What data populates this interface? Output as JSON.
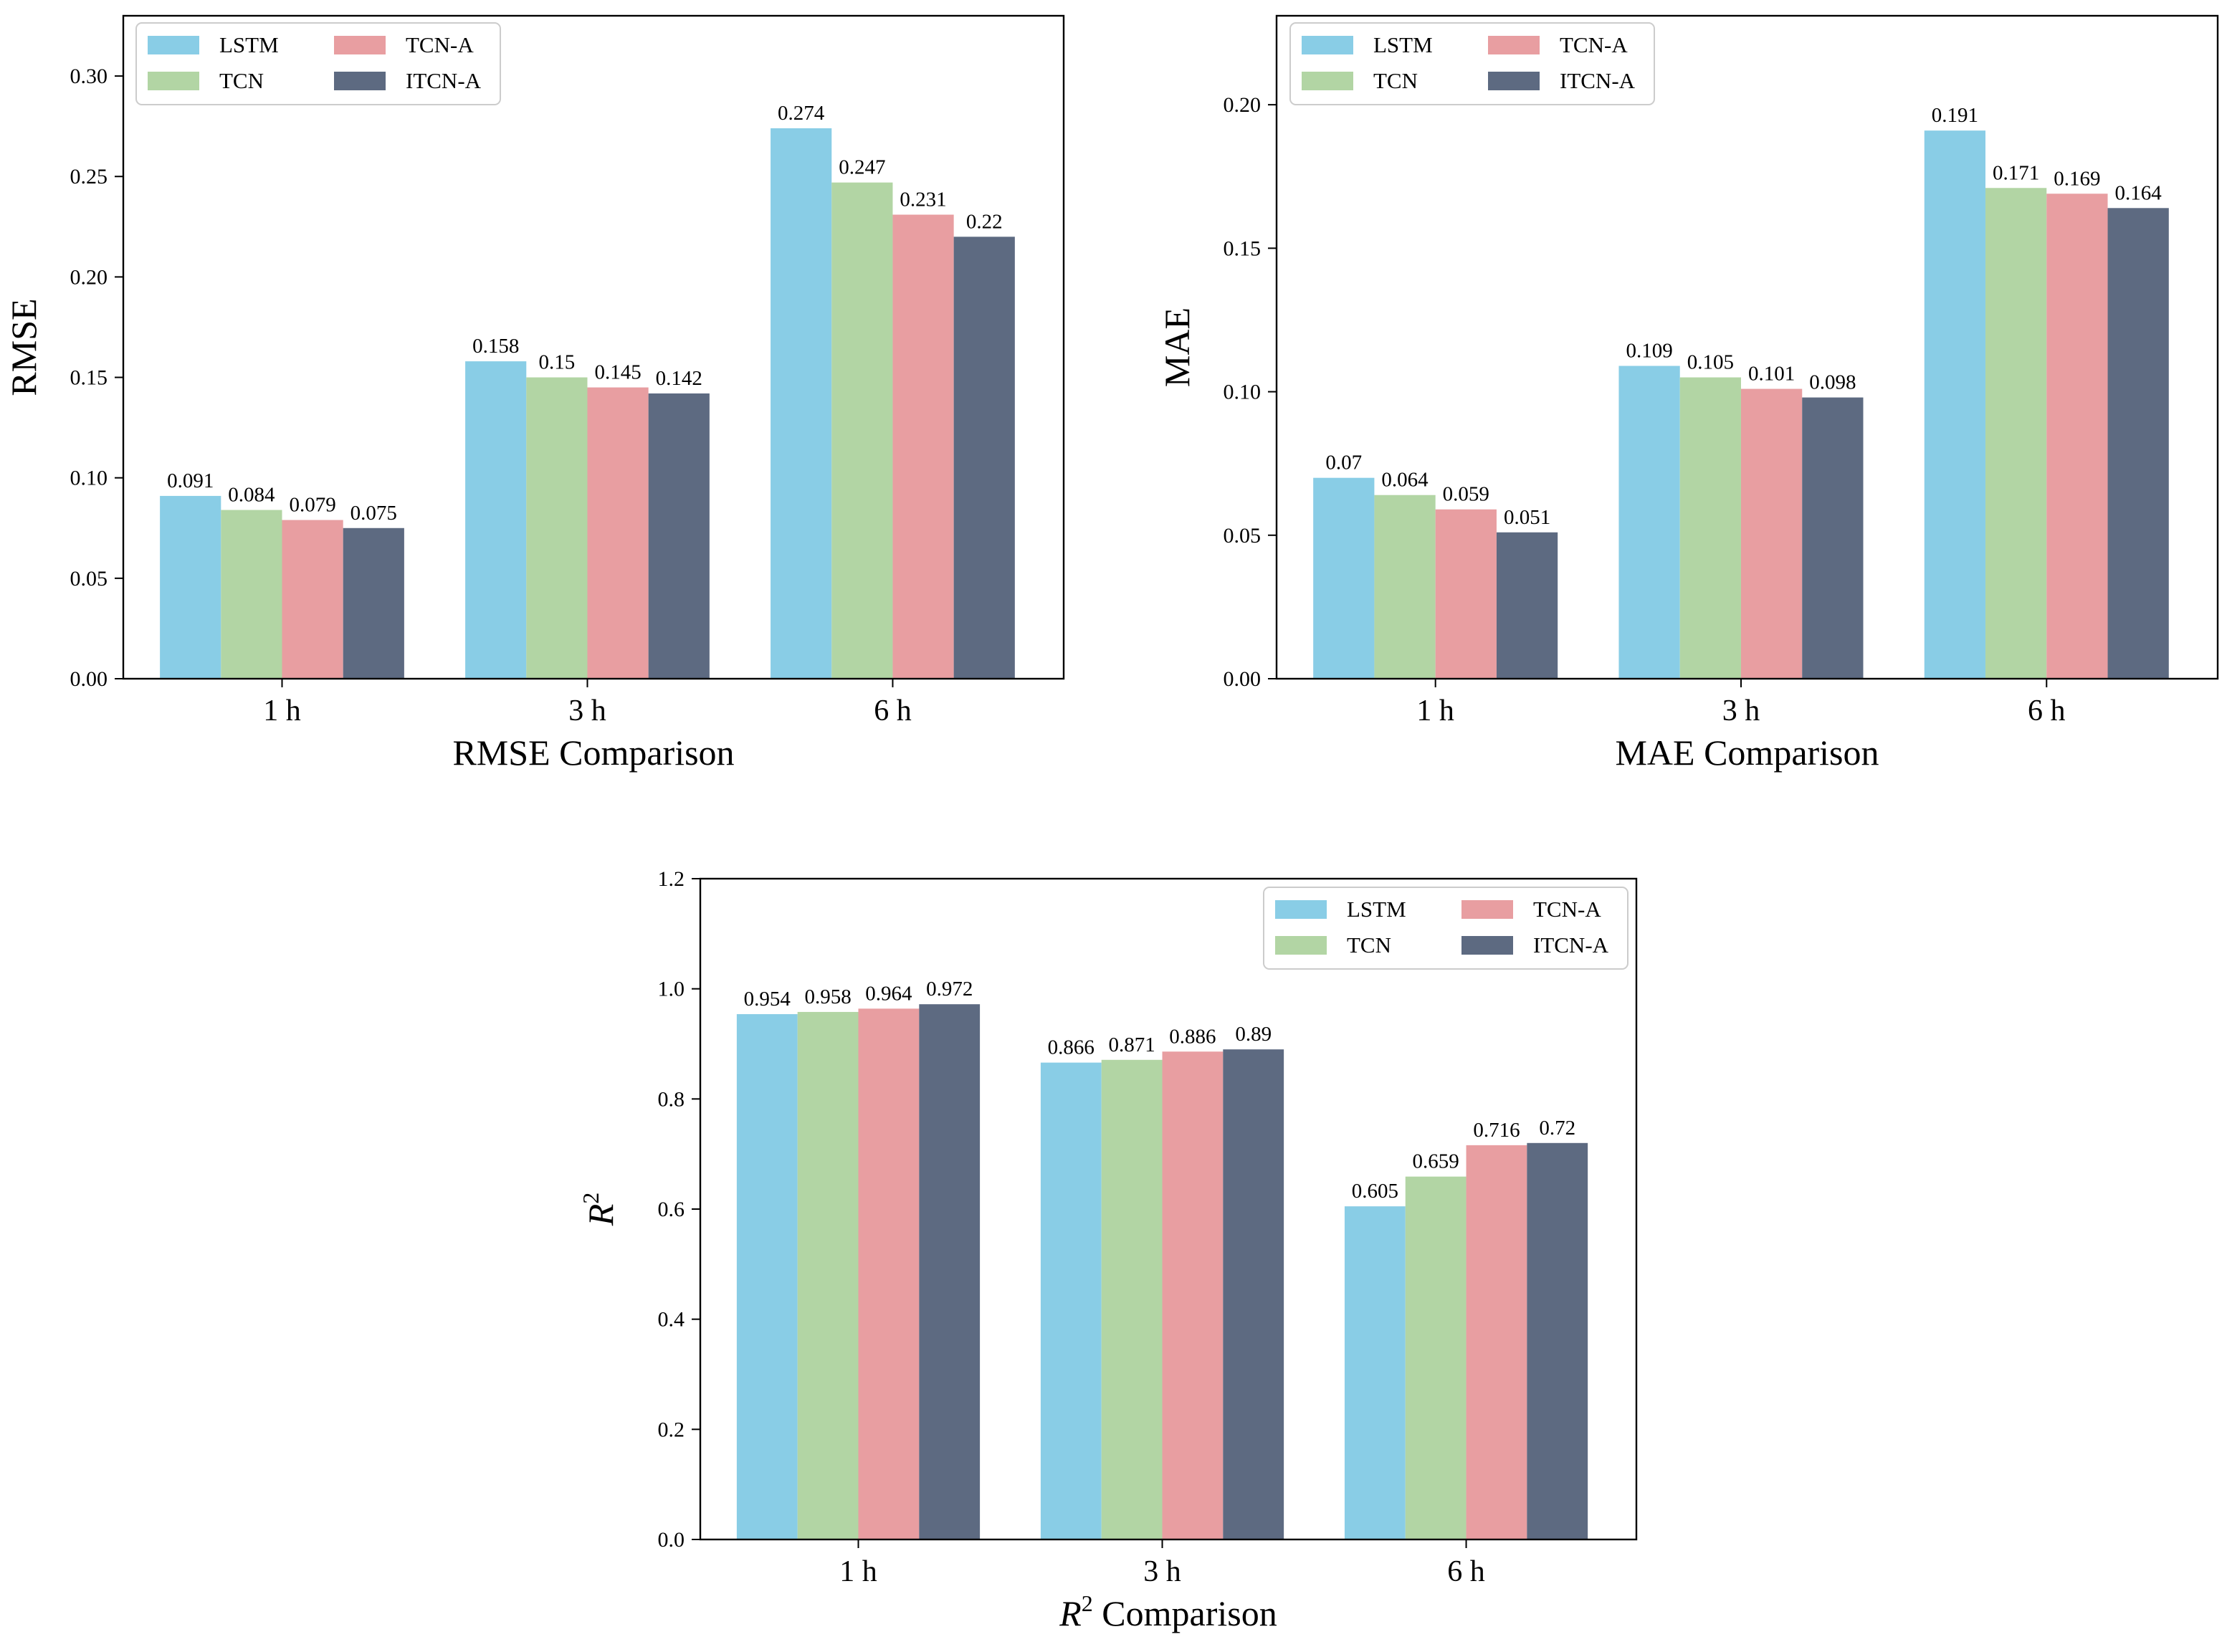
{
  "colors": {
    "LSTM": "#89cde6",
    "TCN": "#b2d5a4",
    "TCN-A": "#e89ea1",
    "ITCN-A": "#5d6a81"
  },
  "chart_data": [
    {
      "type": "bar",
      "title": "",
      "xlabel": "RMSE Comparison",
      "ylabel": "RMSE",
      "categories": [
        "1 h",
        "3 h",
        "6 h"
      ],
      "ylim": [
        0,
        0.33
      ],
      "yticks": [
        "0.00",
        "0.05",
        "0.10",
        "0.15",
        "0.20",
        "0.25",
        "0.30"
      ],
      "legend": {
        "position": "top-left",
        "entries": [
          "LSTM",
          "TCN",
          "TCN-A",
          "ITCN-A"
        ]
      },
      "series": [
        {
          "name": "LSTM",
          "values": [
            0.091,
            0.158,
            0.274
          ]
        },
        {
          "name": "TCN",
          "values": [
            0.084,
            0.15,
            0.247
          ]
        },
        {
          "name": "TCN-A",
          "values": [
            0.079,
            0.145,
            0.231
          ]
        },
        {
          "name": "ITCN-A",
          "values": [
            0.075,
            0.142,
            0.22
          ]
        }
      ]
    },
    {
      "type": "bar",
      "title": "",
      "xlabel": "MAE Comparison",
      "ylabel": "MAE",
      "categories": [
        "1 h",
        "3 h",
        "6 h"
      ],
      "ylim": [
        0,
        0.231
      ],
      "yticks": [
        "0.00",
        "0.05",
        "0.10",
        "0.15",
        "0.20"
      ],
      "legend": {
        "position": "top-left",
        "entries": [
          "LSTM",
          "TCN",
          "TCN-A",
          "ITCN-A"
        ]
      },
      "series": [
        {
          "name": "LSTM",
          "values": [
            0.07,
            0.109,
            0.191
          ]
        },
        {
          "name": "TCN",
          "values": [
            0.064,
            0.105,
            0.171
          ]
        },
        {
          "name": "TCN-A",
          "values": [
            0.059,
            0.101,
            0.169
          ]
        },
        {
          "name": "ITCN-A",
          "values": [
            0.051,
            0.098,
            0.164
          ]
        }
      ]
    },
    {
      "type": "bar",
      "title": "",
      "xlabel": "R2 Comparison",
      "xlabel_parts": [
        "R",
        "2",
        " Comparison"
      ],
      "ylabel": "R2",
      "ylabel_parts": [
        "R",
        "2"
      ],
      "categories": [
        "1 h",
        "3 h",
        "6 h"
      ],
      "ylim": [
        0,
        1.2
      ],
      "yticks": [
        "0.0",
        "0.2",
        "0.4",
        "0.6",
        "0.8",
        "1.0",
        "1.2"
      ],
      "legend": {
        "position": "top-right",
        "entries": [
          "LSTM",
          "TCN",
          "TCN-A",
          "ITCN-A"
        ]
      },
      "series": [
        {
          "name": "LSTM",
          "values": [
            0.954,
            0.866,
            0.605
          ]
        },
        {
          "name": "TCN",
          "values": [
            0.958,
            0.871,
            0.659
          ]
        },
        {
          "name": "TCN-A",
          "values": [
            0.964,
            0.886,
            0.716
          ]
        },
        {
          "name": "ITCN-A",
          "values": [
            0.972,
            0.89,
            0.72
          ]
        }
      ]
    }
  ]
}
